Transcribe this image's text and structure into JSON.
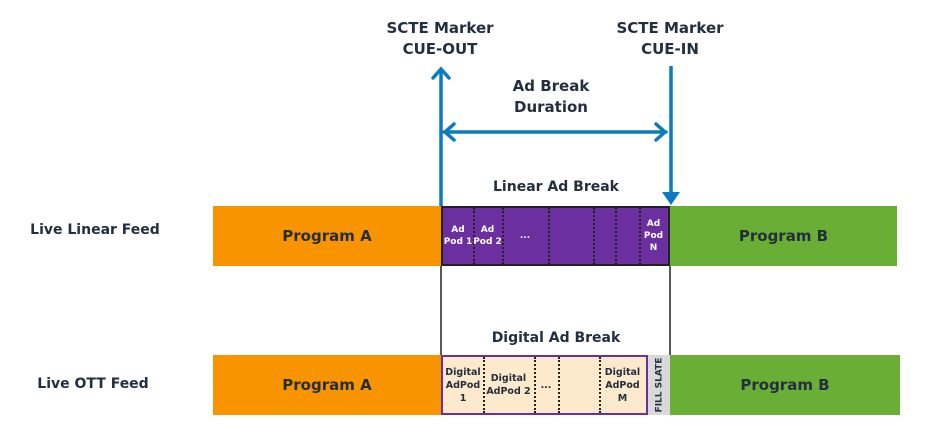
{
  "markers": {
    "cue_out": "SCTE Marker\nCUE-OUT",
    "cue_out_l1": "SCTE Marker",
    "cue_out_l2": "CUE-OUT",
    "cue_in_l1": "SCTE Marker",
    "cue_in_l2": "CUE-IN"
  },
  "duration": {
    "l1": "Ad Break",
    "l2": "Duration"
  },
  "linear": {
    "row_label": "Live Linear Feed",
    "program_a": "Program A",
    "program_b": "Program B",
    "break_title": "Linear Ad Break",
    "pods": [
      "Ad\nPod 1",
      "Ad\nPod 2",
      "...",
      "Ad\nPod N"
    ]
  },
  "ott": {
    "row_label": "Live OTT Feed",
    "program_a": "Program A",
    "program_b": "Program B",
    "break_title": "Digital Ad Break",
    "pods": [
      "Digital\nAdPod 1",
      "Digital\nAdPod 2",
      "...",
      "Digital\nAdPod M"
    ],
    "fill_slate": "FILL SLATE"
  },
  "colors": {
    "program_a": "#f79400",
    "program_b": "#6aaf35",
    "linear_ad": "#6b2fa0",
    "digital_ad": "#fde9cc",
    "fill_slate": "#d9d9d9",
    "arrow": "#0a7bc1",
    "text": "#232f3e"
  }
}
